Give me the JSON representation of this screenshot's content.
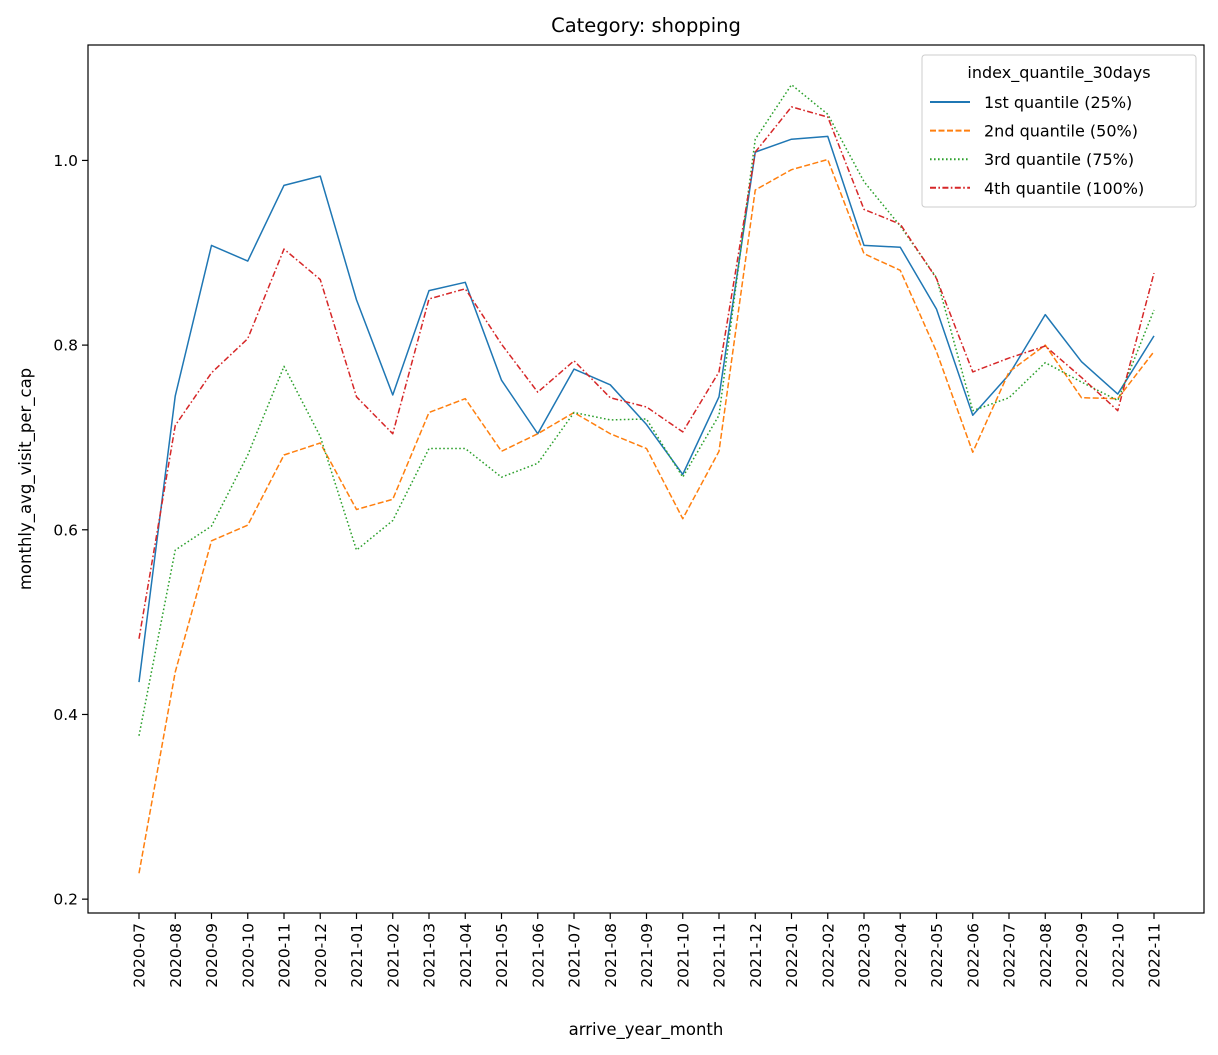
{
  "chart_data": {
    "type": "line",
    "title": "Category: shopping",
    "xlabel": "arrive_year_month",
    "ylabel": "monthly_avg_visit_per_cap",
    "ylim": [
      0.185,
      1.125
    ],
    "yticks": [
      0.2,
      0.4,
      0.6,
      0.8,
      1.0
    ],
    "ytick_labels": [
      "0.2",
      "0.4",
      "0.6",
      "0.8",
      "1.0"
    ],
    "grid": false,
    "legend": {
      "title": "index_quantile_30days",
      "placement": "top-right"
    },
    "categories": [
      "2020-07",
      "2020-08",
      "2020-09",
      "2020-10",
      "2020-11",
      "2020-12",
      "2021-01",
      "2021-02",
      "2021-03",
      "2021-04",
      "2021-05",
      "2021-06",
      "2021-07",
      "2021-08",
      "2021-09",
      "2021-10",
      "2021-11",
      "2021-12",
      "2022-01",
      "2022-02",
      "2022-03",
      "2022-04",
      "2022-05",
      "2022-06",
      "2022-07",
      "2022-08",
      "2022-09",
      "2022-10",
      "2022-11"
    ],
    "series": [
      {
        "name": "1st quantile (25%)",
        "color": "#1f77b4",
        "dash": "solid",
        "values": [
          0.435,
          0.745,
          0.908,
          0.891,
          0.973,
          0.983,
          0.849,
          0.746,
          0.859,
          0.868,
          0.762,
          0.704,
          0.774,
          0.757,
          0.714,
          0.66,
          0.744,
          1.009,
          1.023,
          1.026,
          0.908,
          0.906,
          0.839,
          0.724,
          0.768,
          0.833,
          0.782,
          0.747,
          0.81
        ]
      },
      {
        "name": "2nd quantile (50%)",
        "color": "#ff7f0e",
        "dash": "dashed",
        "values": [
          0.228,
          0.446,
          0.588,
          0.605,
          0.681,
          0.694,
          0.622,
          0.633,
          0.727,
          0.742,
          0.685,
          0.704,
          0.727,
          0.704,
          0.688,
          0.612,
          0.685,
          0.968,
          0.99,
          1.001,
          0.899,
          0.881,
          0.793,
          0.684,
          0.771,
          0.8,
          0.743,
          0.742,
          0.793
        ]
      },
      {
        "name": "3rd quantile (75%)",
        "color": "#2ca02c",
        "dash": "dotted",
        "values": [
          0.377,
          0.578,
          0.604,
          0.681,
          0.777,
          0.701,
          0.578,
          0.61,
          0.688,
          0.688,
          0.657,
          0.672,
          0.727,
          0.719,
          0.72,
          0.657,
          0.724,
          1.023,
          1.082,
          1.05,
          0.977,
          0.929,
          0.873,
          0.729,
          0.743,
          0.781,
          0.76,
          0.74,
          0.838
        ]
      },
      {
        "name": "4th quantile (100%)",
        "color": "#d62728",
        "dash": "dashdot",
        "values": [
          0.482,
          0.713,
          0.77,
          0.807,
          0.904,
          0.871,
          0.744,
          0.704,
          0.85,
          0.861,
          0.801,
          0.749,
          0.783,
          0.743,
          0.733,
          0.706,
          0.771,
          1.009,
          1.058,
          1.047,
          0.947,
          0.931,
          0.872,
          0.771,
          0.786,
          0.799,
          0.765,
          0.729,
          0.878
        ]
      }
    ]
  }
}
